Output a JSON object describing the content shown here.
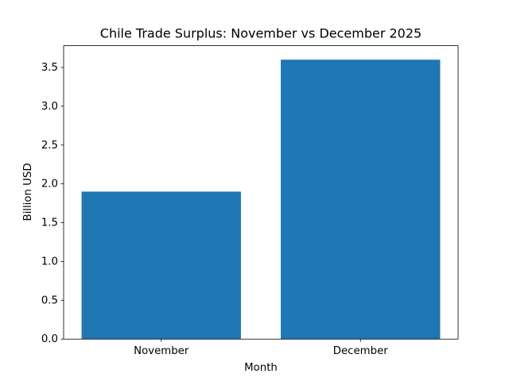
{
  "chart_data": {
    "type": "bar",
    "title": "Chile Trade Surplus: November vs December 2025",
    "x_label": "Month",
    "y_label": "Billion USD",
    "categories": [
      "November",
      "December"
    ],
    "values": [
      1.9,
      3.6
    ],
    "color": "#1f77b4",
    "ylim": [
      0,
      3.78
    ],
    "yticks": [
      {
        "value": 0,
        "label": "0.0"
      },
      0.5,
      {
        "value": 1,
        "label": "1.0"
      },
      1.5,
      {
        "value": 2,
        "label": "2.0"
      },
      2.5,
      {
        "value": 3,
        "label": "3.0"
      },
      3.5
    ],
    "grid": false
  }
}
